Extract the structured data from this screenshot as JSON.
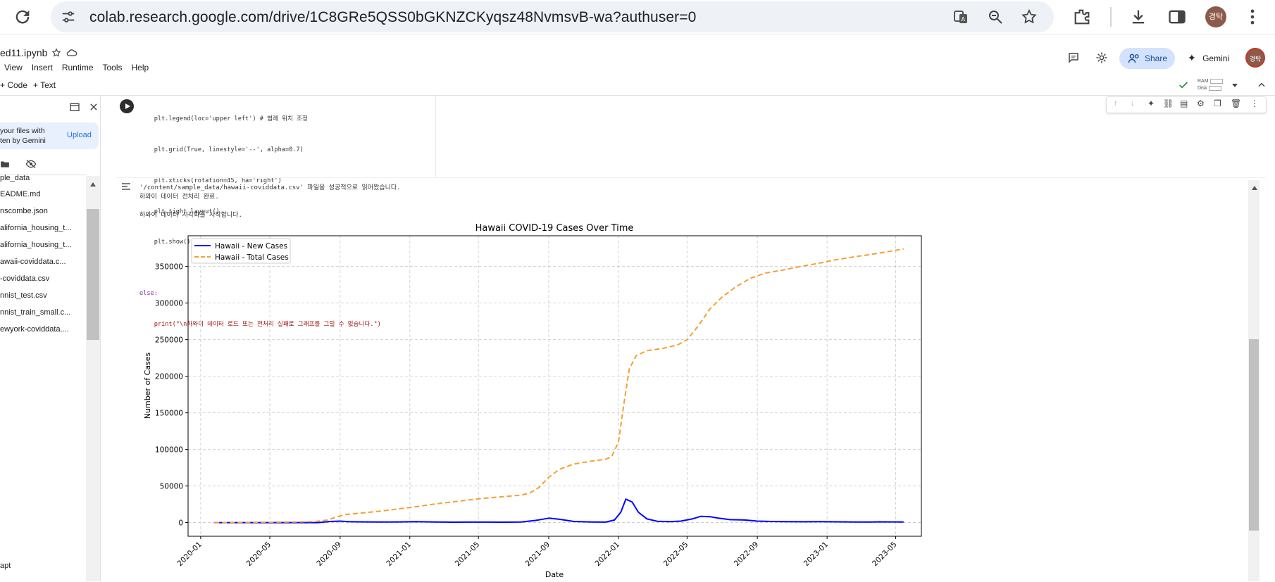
{
  "browser": {
    "url": "colab.research.google.com/drive/1C8GRe5QSS0bGKNZCKyqsz48NvmsvB-wa?authuser=0",
    "profile_initials": "경탁"
  },
  "colab": {
    "notebook_title": "ed11.ipynb",
    "menu": [
      "View",
      "Insert",
      "Runtime",
      "Tools",
      "Help"
    ],
    "add_code": "+ Code",
    "add_text": "+ Text",
    "share_label": "Share",
    "gemini_label": "Gemini",
    "ram_label": "RAM",
    "disk_label": "Disk",
    "avatar_initials": "경탁"
  },
  "sidebar": {
    "banner_line1": "your files with",
    "banner_line2": "ten by Gemini",
    "upload_label": "Upload",
    "files": [
      "ple_data",
      "EADME.md",
      "nscombe.json",
      "alifornia_housing_t...",
      "alifornia_housing_t...",
      "awaii-coviddata.c...",
      "-coviddata.csv",
      "nnist_test.csv",
      "nnist_train_small.c...",
      "ewyork-coviddata...."
    ],
    "bottom_item": "apt"
  },
  "code_lines": [
    "    plt.legend(loc='upper left') # 범례 위치 조정",
    "    plt.grid(True, linestyle='--', alpha=0.7)",
    "    plt.xticks(rotation=45, ha='right')",
    "    plt.tight_layout()",
    "    plt.show()",
    "",
    "else:",
    "    print(\"\\n하와이 데이터 로드 또는 전처리 실패로 그래프를 그릴 수 없습니다.\")"
  ],
  "output": {
    "line1": "'/content/sample_data/hawaii-coviddata.csv' 파일을 성공적으로 읽어왔습니다.",
    "line2": "하와이 데이터 전처리 완료.",
    "line3": "하와이 데이터 시각화를 시작합니다."
  },
  "chart_data": {
    "type": "line",
    "title": "Hawaii COVID-19 Cases Over Time",
    "xlabel": "Date",
    "ylabel": "Number of Cases",
    "xlim": [
      "2019-12-10",
      "2023-06-15"
    ],
    "ylim": [
      -18700,
      392000
    ],
    "x_ticks": [
      "2020-01",
      "2020-05",
      "2020-09",
      "2021-01",
      "2021-05",
      "2021-09",
      "2022-01",
      "2022-05",
      "2022-09",
      "2023-01",
      "2023-05"
    ],
    "y_ticks": [
      0,
      50000,
      100000,
      150000,
      200000,
      250000,
      300000,
      350000
    ],
    "grid": true,
    "legend_position": "upper left",
    "series": [
      {
        "name": "Hawaii - New Cases",
        "color": "#0000ff",
        "style": "solid",
        "points": [
          [
            "2020-01-25",
            0
          ],
          [
            "2020-03-15",
            0
          ],
          [
            "2020-05-01",
            0
          ],
          [
            "2020-06-15",
            0
          ],
          [
            "2020-07-25",
            0
          ],
          [
            "2020-08-15",
            1500
          ],
          [
            "2020-09-01",
            2000
          ],
          [
            "2020-09-15",
            1200
          ],
          [
            "2020-10-15",
            900
          ],
          [
            "2020-11-15",
            800
          ],
          [
            "2020-12-15",
            900
          ],
          [
            "2021-01-10",
            1200
          ],
          [
            "2021-02-15",
            800
          ],
          [
            "2021-03-15",
            500
          ],
          [
            "2021-04-15",
            600
          ],
          [
            "2021-05-15",
            600
          ],
          [
            "2021-06-15",
            500
          ],
          [
            "2021-07-15",
            800
          ],
          [
            "2021-08-10",
            3000
          ],
          [
            "2021-09-01",
            6000
          ],
          [
            "2021-09-20",
            4500
          ],
          [
            "2021-10-15",
            1500
          ],
          [
            "2021-11-15",
            800
          ],
          [
            "2021-12-10",
            600
          ],
          [
            "2021-12-25",
            3500
          ],
          [
            "2022-01-05",
            14000
          ],
          [
            "2022-01-14",
            32000
          ],
          [
            "2022-01-25",
            28000
          ],
          [
            "2022-02-05",
            14000
          ],
          [
            "2022-02-20",
            5000
          ],
          [
            "2022-03-10",
            1800
          ],
          [
            "2022-04-01",
            1200
          ],
          [
            "2022-04-20",
            2000
          ],
          [
            "2022-05-10",
            5000
          ],
          [
            "2022-05-25",
            8500
          ],
          [
            "2022-06-10",
            8000
          ],
          [
            "2022-06-25",
            6000
          ],
          [
            "2022-07-15",
            4000
          ],
          [
            "2022-08-10",
            3500
          ],
          [
            "2022-09-01",
            2000
          ],
          [
            "2022-09-25",
            1500
          ],
          [
            "2022-10-20",
            1200
          ],
          [
            "2022-11-20",
            1100
          ],
          [
            "2022-12-20",
            1200
          ],
          [
            "2023-01-20",
            1000
          ],
          [
            "2023-02-20",
            800
          ],
          [
            "2023-03-20",
            700
          ],
          [
            "2023-04-01",
            1000
          ],
          [
            "2023-04-20",
            900
          ],
          [
            "2023-05-15",
            800
          ]
        ]
      },
      {
        "name": "Hawaii - Total Cases",
        "color": "#f5a030",
        "style": "dashed",
        "points": [
          [
            "2020-01-25",
            0
          ],
          [
            "2020-03-15",
            200
          ],
          [
            "2020-05-01",
            500
          ],
          [
            "2020-06-15",
            800
          ],
          [
            "2020-07-20",
            1500
          ],
          [
            "2020-08-10",
            3500
          ],
          [
            "2020-08-25",
            7500
          ],
          [
            "2020-09-10",
            11000
          ],
          [
            "2020-10-15",
            13500
          ],
          [
            "2020-11-15",
            16000
          ],
          [
            "2020-12-15",
            19000
          ],
          [
            "2021-01-15",
            22000
          ],
          [
            "2021-02-15",
            25500
          ],
          [
            "2021-03-15",
            28000
          ],
          [
            "2021-04-15",
            31000
          ],
          [
            "2021-05-15",
            33500
          ],
          [
            "2021-06-15",
            35500
          ],
          [
            "2021-07-15",
            37500
          ],
          [
            "2021-07-30",
            40500
          ],
          [
            "2021-08-15",
            48000
          ],
          [
            "2021-09-01",
            62000
          ],
          [
            "2021-09-20",
            73000
          ],
          [
            "2021-10-15",
            80000
          ],
          [
            "2021-11-15",
            84000
          ],
          [
            "2021-12-10",
            86500
          ],
          [
            "2021-12-20",
            90000
          ],
          [
            "2022-01-01",
            110000
          ],
          [
            "2022-01-10",
            160000
          ],
          [
            "2022-01-20",
            210000
          ],
          [
            "2022-02-01",
            228000
          ],
          [
            "2022-02-20",
            235000
          ],
          [
            "2022-03-20",
            238000
          ],
          [
            "2022-04-15",
            243000
          ],
          [
            "2022-05-01",
            250000
          ],
          [
            "2022-05-20",
            268000
          ],
          [
            "2022-06-10",
            292000
          ],
          [
            "2022-07-01",
            308000
          ],
          [
            "2022-07-25",
            322000
          ],
          [
            "2022-08-20",
            334000
          ],
          [
            "2022-09-15",
            341000
          ],
          [
            "2022-10-15",
            345000
          ],
          [
            "2022-11-15",
            350000
          ],
          [
            "2022-12-15",
            354000
          ],
          [
            "2023-01-15",
            359000
          ],
          [
            "2023-02-15",
            363000
          ],
          [
            "2023-03-15",
            366000
          ],
          [
            "2023-04-15",
            370000
          ],
          [
            "2023-05-15",
            374000
          ]
        ]
      }
    ]
  }
}
